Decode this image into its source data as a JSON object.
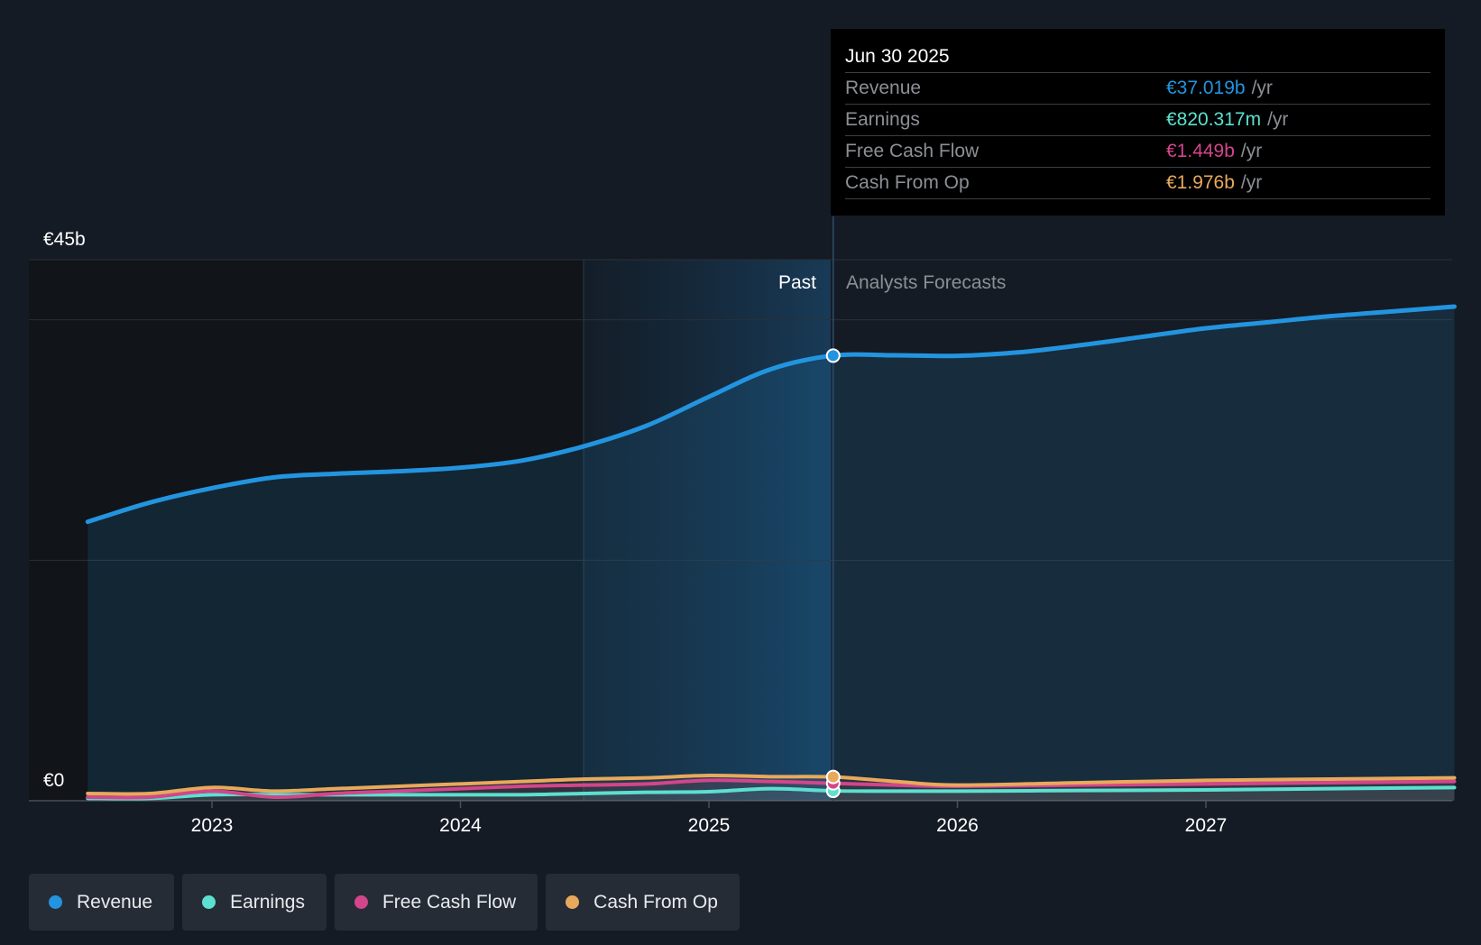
{
  "chart_data": {
    "type": "area",
    "title": "",
    "y_axis": {
      "label_top": "€45b",
      "label_bottom": "€0",
      "ylim": [
        0,
        45
      ]
    },
    "x_ticks": [
      "2023",
      "2024",
      "2025",
      "2026",
      "2027"
    ],
    "past_label": "Past",
    "forecast_label": "Analysts Forecasts",
    "divider_date": 2025.5,
    "x_range": [
      2022.5,
      2028.0
    ],
    "series": [
      {
        "name": "Revenue",
        "color": "#2394df",
        "points": [
          [
            2022.5,
            23.2
          ],
          [
            2022.75,
            24.8
          ],
          [
            2023.0,
            26.0
          ],
          [
            2023.25,
            26.9
          ],
          [
            2023.5,
            27.2
          ],
          [
            2023.75,
            27.4
          ],
          [
            2024.0,
            27.7
          ],
          [
            2024.25,
            28.3
          ],
          [
            2024.5,
            29.5
          ],
          [
            2024.75,
            31.2
          ],
          [
            2025.0,
            33.6
          ],
          [
            2025.25,
            35.9
          ],
          [
            2025.5,
            37.019
          ],
          [
            2025.75,
            37.05
          ],
          [
            2026.0,
            37.0
          ],
          [
            2026.25,
            37.3
          ],
          [
            2026.5,
            37.9
          ],
          [
            2026.75,
            38.6
          ],
          [
            2027.0,
            39.3
          ],
          [
            2027.25,
            39.8
          ],
          [
            2027.5,
            40.3
          ],
          [
            2027.75,
            40.7
          ],
          [
            2028.0,
            41.1
          ]
        ]
      },
      {
        "name": "Earnings",
        "color": "#5ce0d0",
        "points": [
          [
            2022.5,
            0.2
          ],
          [
            2022.75,
            0.2
          ],
          [
            2023.0,
            0.5
          ],
          [
            2023.25,
            0.5
          ],
          [
            2023.5,
            0.5
          ],
          [
            2023.75,
            0.5
          ],
          [
            2024.0,
            0.5
          ],
          [
            2024.25,
            0.5
          ],
          [
            2024.5,
            0.6
          ],
          [
            2024.75,
            0.7
          ],
          [
            2025.0,
            0.75
          ],
          [
            2025.25,
            1.0
          ],
          [
            2025.5,
            0.820317
          ],
          [
            2025.75,
            0.8
          ],
          [
            2026.0,
            0.8
          ],
          [
            2026.5,
            0.85
          ],
          [
            2027.0,
            0.9
          ],
          [
            2027.5,
            1.0
          ],
          [
            2028.0,
            1.1
          ]
        ]
      },
      {
        "name": "Free Cash Flow",
        "color": "#d2468b",
        "points": [
          [
            2022.5,
            0.3
          ],
          [
            2022.75,
            0.3
          ],
          [
            2023.0,
            0.8
          ],
          [
            2023.25,
            0.3
          ],
          [
            2023.5,
            0.6
          ],
          [
            2023.75,
            0.8
          ],
          [
            2024.0,
            1.0
          ],
          [
            2024.25,
            1.2
          ],
          [
            2024.5,
            1.3
          ],
          [
            2024.75,
            1.4
          ],
          [
            2025.0,
            1.7
          ],
          [
            2025.25,
            1.6
          ],
          [
            2025.5,
            1.449
          ],
          [
            2025.75,
            1.3
          ],
          [
            2026.0,
            1.2
          ],
          [
            2026.5,
            1.3
          ],
          [
            2027.0,
            1.4
          ],
          [
            2027.5,
            1.5
          ],
          [
            2028.0,
            1.6
          ]
        ]
      },
      {
        "name": "Cash From Op",
        "color": "#e8a95c",
        "points": [
          [
            2022.5,
            0.6
          ],
          [
            2022.75,
            0.6
          ],
          [
            2023.0,
            1.1
          ],
          [
            2023.25,
            0.8
          ],
          [
            2023.5,
            1.0
          ],
          [
            2023.75,
            1.2
          ],
          [
            2024.0,
            1.4
          ],
          [
            2024.25,
            1.6
          ],
          [
            2024.5,
            1.8
          ],
          [
            2024.75,
            1.9
          ],
          [
            2025.0,
            2.1
          ],
          [
            2025.25,
            2.0
          ],
          [
            2025.5,
            1.976
          ],
          [
            2025.75,
            1.6
          ],
          [
            2026.0,
            1.3
          ],
          [
            2026.5,
            1.5
          ],
          [
            2027.0,
            1.7
          ],
          [
            2027.5,
            1.8
          ],
          [
            2028.0,
            1.9
          ]
        ]
      }
    ]
  },
  "tooltip": {
    "date": "Jun 30 2025",
    "unit": "/yr",
    "rows": [
      {
        "label": "Revenue",
        "value": "€37.019b",
        "color": "#2394df"
      },
      {
        "label": "Earnings",
        "value": "€820.317m",
        "color": "#5ce0d0"
      },
      {
        "label": "Free Cash Flow",
        "value": "€1.449b",
        "color": "#d2468b"
      },
      {
        "label": "Cash From Op",
        "value": "€1.976b",
        "color": "#e8a95c"
      }
    ]
  },
  "legend": [
    {
      "label": "Revenue",
      "color": "#2394df"
    },
    {
      "label": "Earnings",
      "color": "#5ce0d0"
    },
    {
      "label": "Free Cash Flow",
      "color": "#d2468b"
    },
    {
      "label": "Cash From Op",
      "color": "#e8a95c"
    }
  ]
}
